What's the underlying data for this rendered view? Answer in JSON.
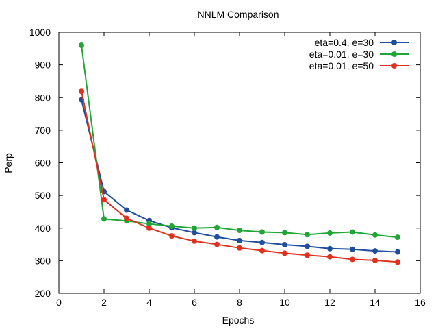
{
  "chart_data": {
    "type": "line",
    "title": "NNLM Comparison",
    "xlabel": "Epochs",
    "ylabel": "Perp",
    "xlim": [
      0,
      16
    ],
    "ylim": [
      200,
      1000
    ],
    "xticks": [
      0,
      2,
      4,
      6,
      8,
      10,
      12,
      14,
      16
    ],
    "yticks": [
      200,
      300,
      400,
      500,
      600,
      700,
      800,
      900,
      1000
    ],
    "x": [
      1,
      2,
      3,
      4,
      5,
      6,
      7,
      8,
      9,
      10,
      11,
      12,
      13,
      14,
      15
    ],
    "legend_position": "top-right",
    "grid": false,
    "series": [
      {
        "name": "eta=0.4, e=30",
        "color": "#1f4e9e",
        "values": [
          793,
          512,
          455,
          423,
          401,
          386,
          373,
          362,
          356,
          349,
          344,
          337,
          335,
          330,
          327
        ]
      },
      {
        "name": "eta=0.01, e=30",
        "color": "#21a535",
        "values": [
          960,
          428,
          422,
          413,
          406,
          400,
          402,
          393,
          388,
          386,
          380,
          385,
          388,
          379,
          372
        ]
      },
      {
        "name": "eta=0.01, e=50",
        "color": "#e0301e",
        "values": [
          819,
          487,
          430,
          400,
          376,
          360,
          350,
          339,
          331,
          323,
          317,
          312,
          304,
          301,
          296
        ]
      }
    ]
  }
}
